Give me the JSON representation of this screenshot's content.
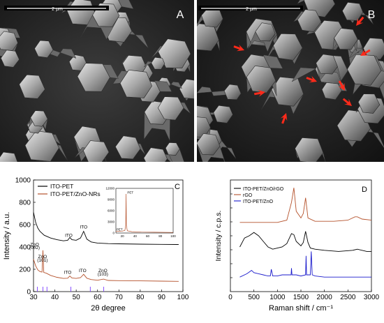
{
  "panels": {
    "a": {
      "letter": "A",
      "scale_label": "2 μm"
    },
    "b": {
      "letter": "B",
      "scale_label": "2 μm"
    },
    "c": {
      "letter": "C"
    },
    "d": {
      "letter": "D"
    }
  },
  "colors": {
    "sem_bg": "#2b2b2b",
    "crystal": "#a8a8a8",
    "arrow": "#ff2a1a",
    "black_series": "#000000",
    "brown_series": "#b5522c",
    "blue_series": "#1a1acc",
    "ref_lines": "#7a3cff"
  },
  "chart_data": [
    {
      "type": "line",
      "panel": "C",
      "xlabel": "2θ degree",
      "ylabel": "Intensity  /  a.u.",
      "xlim": [
        30,
        100
      ],
      "ylim": [
        0,
        1000
      ],
      "xticks": [
        "30",
        "40",
        "50",
        "60",
        "70",
        "80",
        "90",
        "100"
      ],
      "yticks": [
        "0",
        "200",
        "400",
        "600",
        "800",
        "1000"
      ],
      "legend_placement": "top-left",
      "series": [
        {
          "name": "ITO-PET",
          "color": "#000000",
          "x": [
            30,
            31,
            32,
            33,
            35,
            38,
            41,
            44,
            46,
            47,
            48,
            50,
            52,
            53.5,
            55,
            57,
            60,
            65,
            70,
            80,
            90,
            98
          ],
          "y": [
            710,
            620,
            570,
            540,
            505,
            480,
            465,
            455,
            460,
            485,
            465,
            460,
            480,
            540,
            470,
            445,
            435,
            430,
            428,
            425,
            423,
            422
          ]
        },
        {
          "name": "ITO-PET/ZnO-NRs",
          "color": "#b5522c",
          "x": [
            30,
            31,
            32,
            33,
            34,
            34.4,
            34.8,
            36,
            38,
            41,
            44,
            46,
            47,
            48,
            50,
            52,
            53.5,
            55,
            57,
            60,
            62.8,
            65,
            70,
            80,
            90,
            98
          ],
          "y": [
            290,
            230,
            195,
            180,
            175,
            370,
            172,
            165,
            145,
            128,
            118,
            120,
            140,
            122,
            118,
            125,
            155,
            120,
            108,
            102,
            112,
            100,
            98,
            96,
            94,
            92
          ]
        }
      ],
      "reference_lines_x": [
        31.8,
        34.4,
        36.3,
        47.5,
        56.6,
        62.9
      ],
      "annotations": [
        {
          "text": "ITO",
          "x": 46.5,
          "y": 490
        },
        {
          "text": "ITO",
          "x": 53.5,
          "y": 565
        },
        {
          "text": "ZnO",
          "x": 30.5,
          "y": 410
        },
        {
          "text": "(002)",
          "x": 30.5,
          "y": 380
        },
        {
          "text": "ZnO",
          "x": 34.2,
          "y": 300
        },
        {
          "text": "(101)",
          "x": 34.2,
          "y": 270
        },
        {
          "text": "ITO",
          "x": 46,
          "y": 160
        },
        {
          "text": "ITO",
          "x": 53,
          "y": 175
        },
        {
          "text": "ZnO",
          "x": 62.5,
          "y": 175
        },
        {
          "text": "(103)",
          "x": 62.5,
          "y": 145
        }
      ],
      "inset": {
        "type": "line",
        "xlim": [
          10,
          100
        ],
        "ylim": [
          0,
          12000
        ],
        "xticks": [
          "20",
          "40",
          "60",
          "80",
          "100"
        ],
        "yticks": [
          "0",
          "3000",
          "6000",
          "9000",
          "12000"
        ],
        "series": [
          {
            "color": "#b5522c",
            "x": [
              10,
              20,
              24,
              25.5,
              26,
              26.5,
              28,
              35,
              50,
              70,
              100
            ],
            "y": [
              400,
              500,
              700,
              2000,
              10500,
              2000,
              600,
              350,
              250,
              200,
              150
            ]
          }
        ],
        "annotations": [
          {
            "text": "PET",
            "x": 28,
            "y": 10600
          },
          {
            "text": "PET",
            "x": 11,
            "y": 700
          }
        ]
      }
    },
    {
      "type": "line",
      "panel": "D",
      "xlabel": "Raman shift / cm⁻¹",
      "ylabel": "Intensity / c.p.s.",
      "xlim": [
        0,
        3000
      ],
      "xticks": [
        "0",
        "500",
        "1000",
        "1500",
        "2000",
        "2500",
        "3000"
      ],
      "legend_placement": "top-left",
      "series": [
        {
          "name": "ITO-PET/ZnO/rGO",
          "color": "#000000",
          "x": [
            200,
            300,
            400,
            500,
            600,
            700,
            800,
            900,
            1000,
            1100,
            1200,
            1300,
            1350,
            1400,
            1500,
            1550,
            1600,
            1650,
            1700,
            1800,
            2000,
            2300,
            2600,
            2700,
            2900,
            3000
          ],
          "y": [
            0.4,
            0.48,
            0.5,
            0.53,
            0.5,
            0.45,
            0.4,
            0.38,
            0.39,
            0.4,
            0.43,
            0.52,
            0.51,
            0.45,
            0.41,
            0.44,
            0.54,
            0.44,
            0.39,
            0.38,
            0.37,
            0.36,
            0.37,
            0.38,
            0.36,
            0.36
          ]
        },
        {
          "name": "rGO",
          "color": "#b5522c",
          "x": [
            200,
            500,
            1000,
            1200,
            1300,
            1350,
            1400,
            1500,
            1550,
            1600,
            1650,
            1800,
            2200,
            2500,
            2650,
            2700,
            2800,
            3000
          ],
          "y": [
            0.62,
            0.62,
            0.62,
            0.64,
            0.8,
            0.93,
            0.72,
            0.66,
            0.7,
            0.84,
            0.66,
            0.63,
            0.63,
            0.64,
            0.67,
            0.67,
            0.65,
            0.64
          ]
        },
        {
          "name": "ITO-PET/ZnO",
          "color": "#1a1acc",
          "x": [
            200,
            350,
            450,
            500,
            600,
            700,
            800,
            850,
            870,
            900,
            1000,
            1100,
            1200,
            1290,
            1300,
            1310,
            1400,
            1500,
            1600,
            1610,
            1620,
            1700,
            1720,
            1740,
            1800,
            2000,
            2400,
            2800,
            3000
          ],
          "y": [
            0.13,
            0.16,
            0.19,
            0.17,
            0.16,
            0.15,
            0.14,
            0.14,
            0.2,
            0.14,
            0.14,
            0.15,
            0.15,
            0.15,
            0.21,
            0.15,
            0.15,
            0.14,
            0.15,
            0.32,
            0.15,
            0.15,
            0.36,
            0.15,
            0.14,
            0.13,
            0.13,
            0.13,
            0.13
          ]
        }
      ]
    }
  ]
}
